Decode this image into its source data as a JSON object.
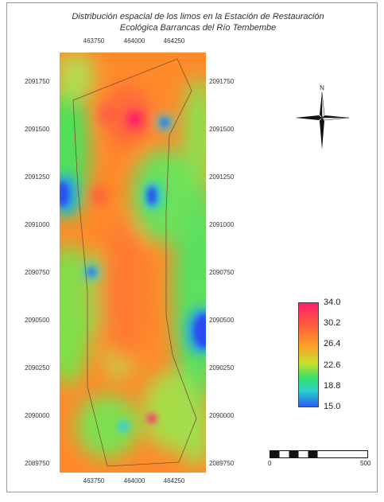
{
  "title": {
    "line1": "Distribución espacial de los limos en la Estación de Restauración",
    "line2": "Ecológica Barrancas del Río Tembembe"
  },
  "x_ticks": [
    "463750",
    "464000",
    "464250"
  ],
  "y_ticks": [
    "2091750",
    "2091500",
    "2091250",
    "2091000",
    "2090750",
    "2090500",
    "2090250",
    "2090000",
    "2089750"
  ],
  "legend": {
    "labels": [
      "34.0",
      "30.2",
      "26.4",
      "22.6",
      "18.8",
      "15.0"
    ],
    "colors": [
      "#ff1f6e",
      "#ff5a3a",
      "#ff9a2a",
      "#c8e02a",
      "#3ae06a",
      "#2a5cf0"
    ]
  },
  "north_arrow": {
    "label": "N",
    "icon": "compass-rose-icon"
  },
  "scale_bar": {
    "start": "0",
    "end": "500"
  }
}
